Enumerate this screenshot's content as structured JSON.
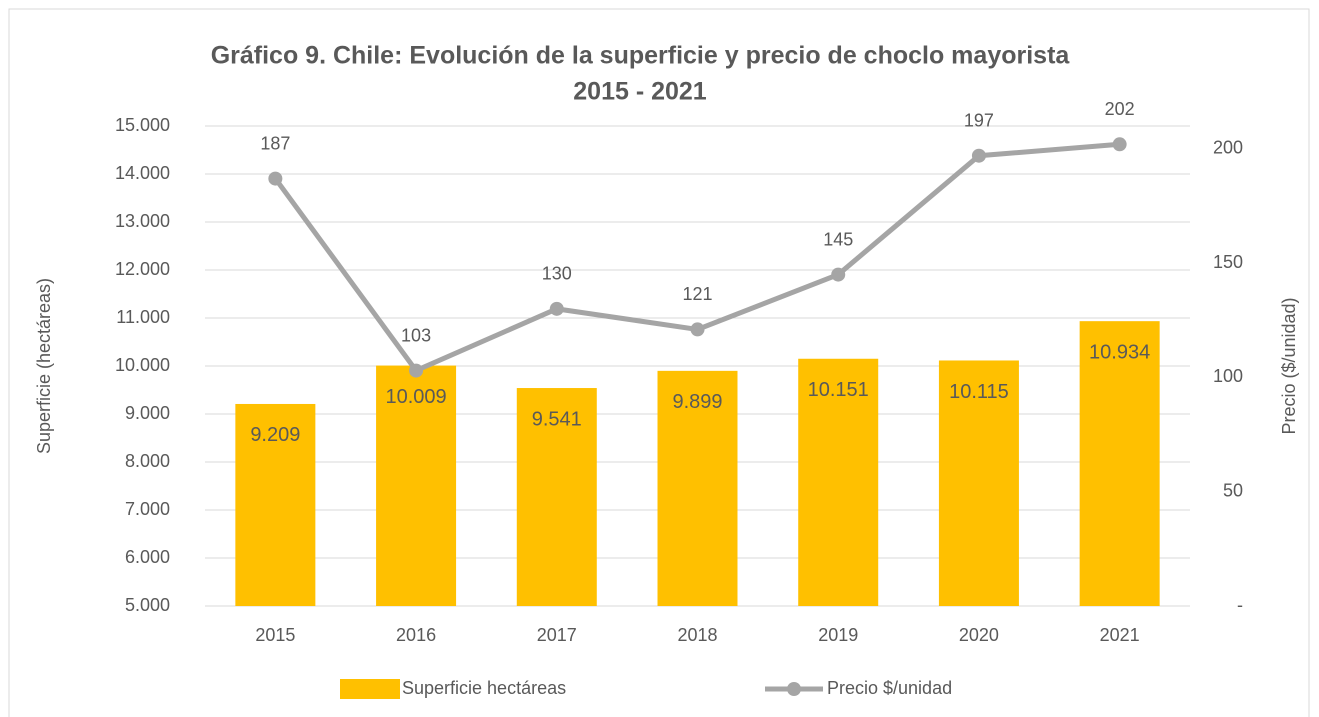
{
  "chart_data": {
    "type": "bar_line",
    "title": [
      "Gráfico 9. Chile: Evolución de la superficie y precio de choclo mayorista",
      "2015 - 2021"
    ],
    "y_label": "Superficie (hectáreas)",
    "y2_label": "Precio ($/unidad)",
    "categories": [
      "2015",
      "2016",
      "2017",
      "2018",
      "2019",
      "2020",
      "2021"
    ],
    "series": [
      {
        "name": "Superficie hectáreas",
        "type": "bar",
        "color": "#FFC000",
        "values": [
          9209,
          10009,
          9541,
          9899,
          10151,
          10115,
          10934
        ],
        "value_labels": [
          "9.209",
          "10.009",
          "9.541",
          "9.899",
          "10.151",
          "10.115",
          "10.934"
        ]
      },
      {
        "name": "Precio $/unidad",
        "type": "line",
        "axis": "y2",
        "color": "#A5A5A5",
        "values": [
          187,
          103,
          130,
          121,
          145,
          197,
          202
        ]
      }
    ],
    "ylim": [
      5000,
      15000
    ],
    "yticks": [
      {
        "value": 5000,
        "label": "5.000"
      },
      {
        "value": 6000,
        "label": "6.000"
      },
      {
        "value": 7000,
        "label": "7.000"
      },
      {
        "value": 8000,
        "label": "8.000"
      },
      {
        "value": 9000,
        "label": "9.000"
      },
      {
        "value": 10000,
        "label": "10.000"
      },
      {
        "value": 11000,
        "label": "11.000"
      },
      {
        "value": 12000,
        "label": "12.000"
      },
      {
        "value": 13000,
        "label": "13.000"
      },
      {
        "value": 14000,
        "label": "14.000"
      },
      {
        "value": 15000,
        "label": "15.000"
      }
    ],
    "y2lim": [
      0,
      210
    ],
    "y2ticks": [
      {
        "value": 0,
        "label": "-"
      },
      50,
      100,
      150,
      200
    ],
    "grid": true,
    "legend": "bottom"
  }
}
